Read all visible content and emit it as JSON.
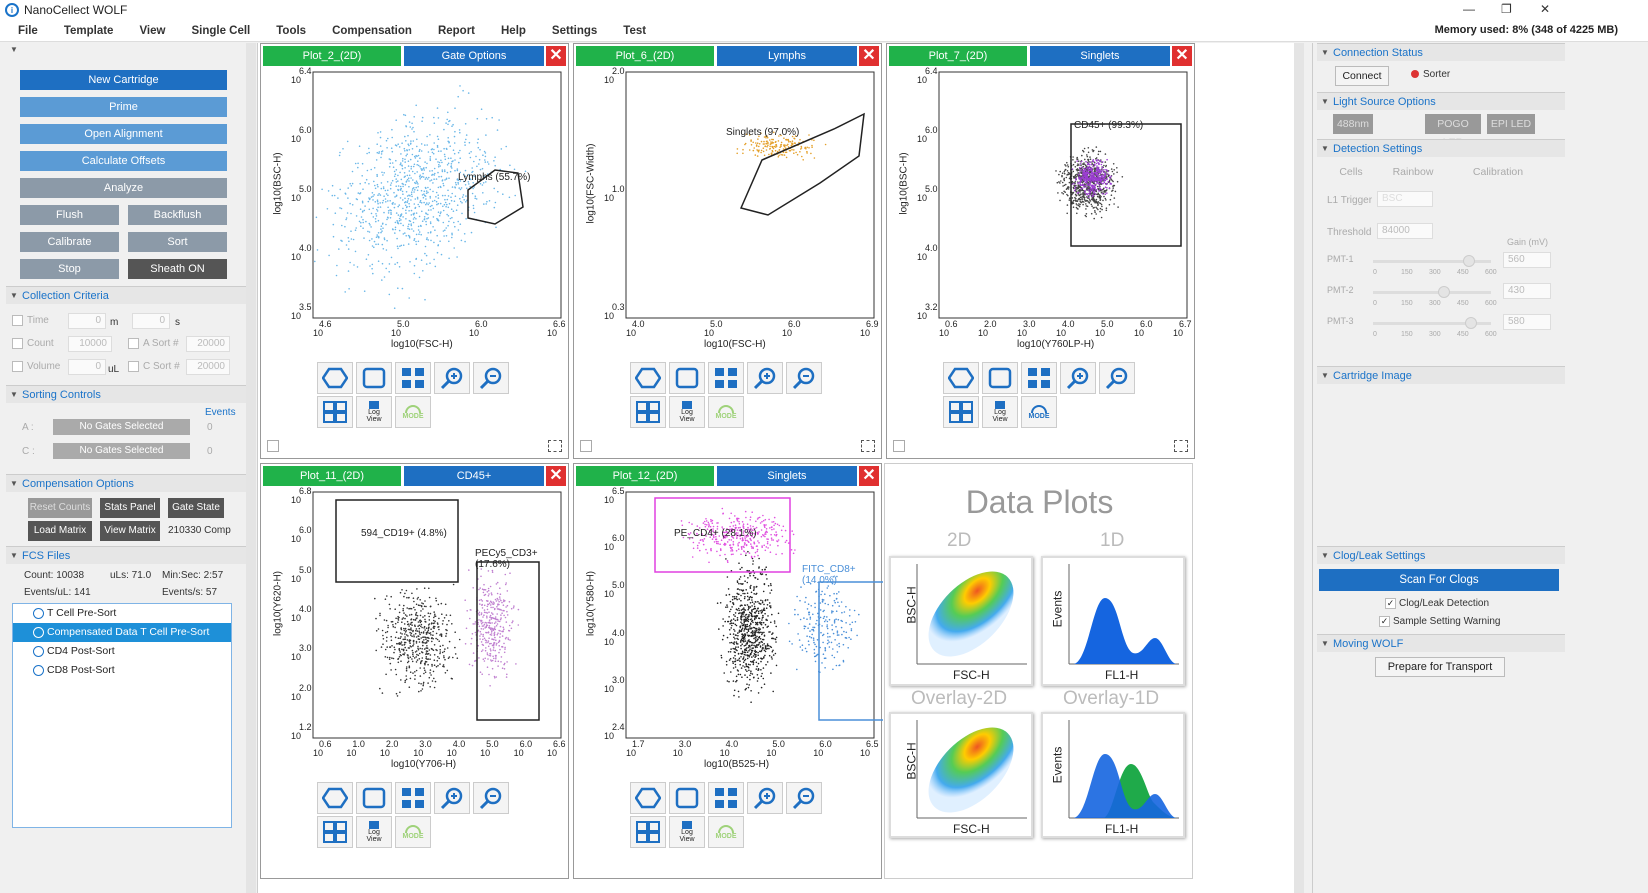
{
  "app": {
    "title": "NanoCellect WOLF",
    "memory": "Memory used: 8% (348 of 4225 MB)"
  },
  "menu": [
    "File",
    "Template",
    "View",
    "Single Cell",
    "Tools",
    "Compensation",
    "Report",
    "Help",
    "Settings",
    "Test"
  ],
  "left": {
    "buttons": {
      "new_cartridge": "New Cartridge",
      "prime": "Prime",
      "open_alignment": "Open Alignment",
      "calculate_offsets": "Calculate Offsets",
      "analyze": "Analyze",
      "flush": "Flush",
      "backflush": "Backflush",
      "calibrate": "Calibrate",
      "sort": "Sort",
      "stop": "Stop",
      "sheath": "Sheath ON"
    },
    "collection": {
      "header": "Collection Criteria",
      "time": "Time",
      "time_m": "0",
      "m": "m",
      "time_s": "0",
      "s": "s",
      "count": "Count",
      "count_val": "10000",
      "a_sort": "A Sort #",
      "a_sort_val": "20000",
      "volume": "Volume",
      "volume_val": "0",
      "ul": "uL",
      "c_sort": "C Sort #",
      "c_sort_val": "20000"
    },
    "sorting": {
      "header": "Sorting Controls",
      "events": "Events",
      "a": "A :",
      "a_gate": "No Gates Selected",
      "a_count": "0",
      "c": "C :",
      "c_gate": "No Gates Selected",
      "c_count": "0"
    },
    "comp": {
      "header": "Compensation Options",
      "reset": "Reset Counts",
      "stats": "Stats Panel",
      "gate_state": "Gate State",
      "load": "Load Matrix",
      "view": "View Matrix",
      "matrix_name": "210330 Comp"
    },
    "fcs": {
      "header": "FCS Files",
      "count": "Count: 10038",
      "uls": "uLs: 71.0",
      "minsec": "Min:Sec: 2:57",
      "evul": "Events/uL: 141",
      "evs": "Events/s: 57",
      "files": [
        "T Cell Pre-Sort",
        "Compensated Data T Cell Pre-Sort",
        "CD4 Post-Sort",
        "CD8 Post-Sort"
      ]
    }
  },
  "plots": [
    {
      "name": "Plot_2_(2D)",
      "gate": "Gate Options",
      "xlabel": "log10(FSC-H)",
      "ylabel": "log10(BSC-H)",
      "xticks": [
        [
          "4.6",
          "10"
        ],
        [
          "5.0",
          "10"
        ],
        [
          "6.0",
          "10"
        ],
        [
          "6.6",
          "10"
        ]
      ],
      "yticks": [
        [
          "6.4",
          "10"
        ],
        [
          "6.0",
          "10"
        ],
        [
          "5.0",
          "10"
        ],
        [
          "4.0",
          "10"
        ],
        [
          "3.5",
          "10"
        ]
      ],
      "gate_label": "Lymphs (55.7%)"
    },
    {
      "name": "Plot_6_(2D)",
      "gate": "Lymphs",
      "xlabel": "log10(FSC-H)",
      "ylabel": "log10(FSC-Width)",
      "xticks": [
        [
          "4.0",
          "10"
        ],
        [
          "5.0",
          "10"
        ],
        [
          "6.0",
          "10"
        ],
        [
          "6.9",
          "10"
        ]
      ],
      "yticks": [
        [
          "2.0",
          "10"
        ],
        [
          "1.0",
          "10"
        ],
        [
          "0.3",
          "10"
        ]
      ],
      "gate_label": "Singlets (97.0%)"
    },
    {
      "name": "Plot_7_(2D)",
      "gate": "Singlets",
      "xlabel": "log10(Y760LP-H)",
      "ylabel": "log10(BSC-H)",
      "xticks": [
        [
          "0.6",
          "10"
        ],
        [
          "2.0",
          "10"
        ],
        [
          "3.0",
          "10"
        ],
        [
          "4.0",
          "10"
        ],
        [
          "5.0",
          "10"
        ],
        [
          "6.0",
          "10"
        ],
        [
          "6.7",
          "10"
        ]
      ],
      "yticks": [
        [
          "6.4",
          "10"
        ],
        [
          "6.0",
          "10"
        ],
        [
          "5.0",
          "10"
        ],
        [
          "4.0",
          "10"
        ],
        [
          "3.2",
          "10"
        ]
      ],
      "gate_label": "CD45+ (99.3%)"
    },
    {
      "name": "Plot_11_(2D)",
      "gate": "CD45+",
      "xlabel": "log10(Y706-H)",
      "ylabel": "log10(Y620-H)",
      "xticks": [
        [
          "0.6",
          "10"
        ],
        [
          "1.0",
          "10"
        ],
        [
          "2.0",
          "10"
        ],
        [
          "3.0",
          "10"
        ],
        [
          "4.0",
          "10"
        ],
        [
          "5.0",
          "10"
        ],
        [
          "6.0",
          "10"
        ],
        [
          "6.6",
          "10"
        ]
      ],
      "yticks": [
        [
          "6.8",
          "10"
        ],
        [
          "6.0",
          "10"
        ],
        [
          "5.0",
          "10"
        ],
        [
          "4.0",
          "10"
        ],
        [
          "3.0",
          "10"
        ],
        [
          "2.0",
          "10"
        ],
        [
          "1.2",
          "10"
        ]
      ],
      "gate_label": "594_CD19+ (4.8%)",
      "gate_label2": "PECy5_CD3+ (17.6%)"
    },
    {
      "name": "Plot_12_(2D)",
      "gate": "Singlets",
      "xlabel": "log10(B525-H)",
      "ylabel": "log10(Y580-H)",
      "xticks": [
        [
          "1.7",
          "10"
        ],
        [
          "3.0",
          "10"
        ],
        [
          "4.0",
          "10"
        ],
        [
          "5.0",
          "10"
        ],
        [
          "6.0",
          "10"
        ],
        [
          "6.5",
          "10"
        ]
      ],
      "yticks": [
        [
          "6.5",
          "10"
        ],
        [
          "6.0",
          "10"
        ],
        [
          "5.0",
          "10"
        ],
        [
          "4.0",
          "10"
        ],
        [
          "3.0",
          "10"
        ],
        [
          "2.4",
          "10"
        ]
      ],
      "gate_label": "PE_CD4+ (28.1%)",
      "gate_label2": "FITC_CD8+ (14.0%)"
    }
  ],
  "tools": {
    "log_view": "Log View",
    "log": "Log",
    "mode": "MODE"
  },
  "dataplots": {
    "title": "Data Plots",
    "t2d": "2D",
    "t1d": "1D",
    "ov2d": "Overlay-2D",
    "ov1d": "Overlay-1D",
    "bsc": "BSC-H",
    "fsc": "FSC-H",
    "events": "Events",
    "fl1": "FL1-H"
  },
  "right": {
    "conn": {
      "header": "Connection Status",
      "connect": "Connect",
      "sorter": "Sorter"
    },
    "light": {
      "header": "Light Source Options",
      "l488": "488nm",
      "pogo": "POGO LED",
      "epi": "EPI LED"
    },
    "det": {
      "header": "Detection Settings",
      "cells": "Cells",
      "rainbow": "Rainbow",
      "calibration": "Calibration",
      "trigger": "L1 Trigger",
      "trigger_val": "BSC",
      "threshold": "Threshold",
      "threshold_val": "84000",
      "gain": "Gain (mV)",
      "pmts": [
        {
          "name": "PMT-1",
          "val": "560"
        },
        {
          "name": "PMT-2",
          "val": "430"
        },
        {
          "name": "PMT-3",
          "val": "580"
        }
      ],
      "scale": [
        "0",
        "150",
        "300",
        "450",
        "600"
      ]
    },
    "cart": {
      "header": "Cartridge Image"
    },
    "clog": {
      "header": "Clog/Leak Settings",
      "scan": "Scan For Clogs",
      "detect": "Clog/Leak Detection",
      "warn": "Sample Setting Warning"
    },
    "moving": {
      "header": "Moving WOLF",
      "prepare": "Prepare for Transport"
    }
  }
}
